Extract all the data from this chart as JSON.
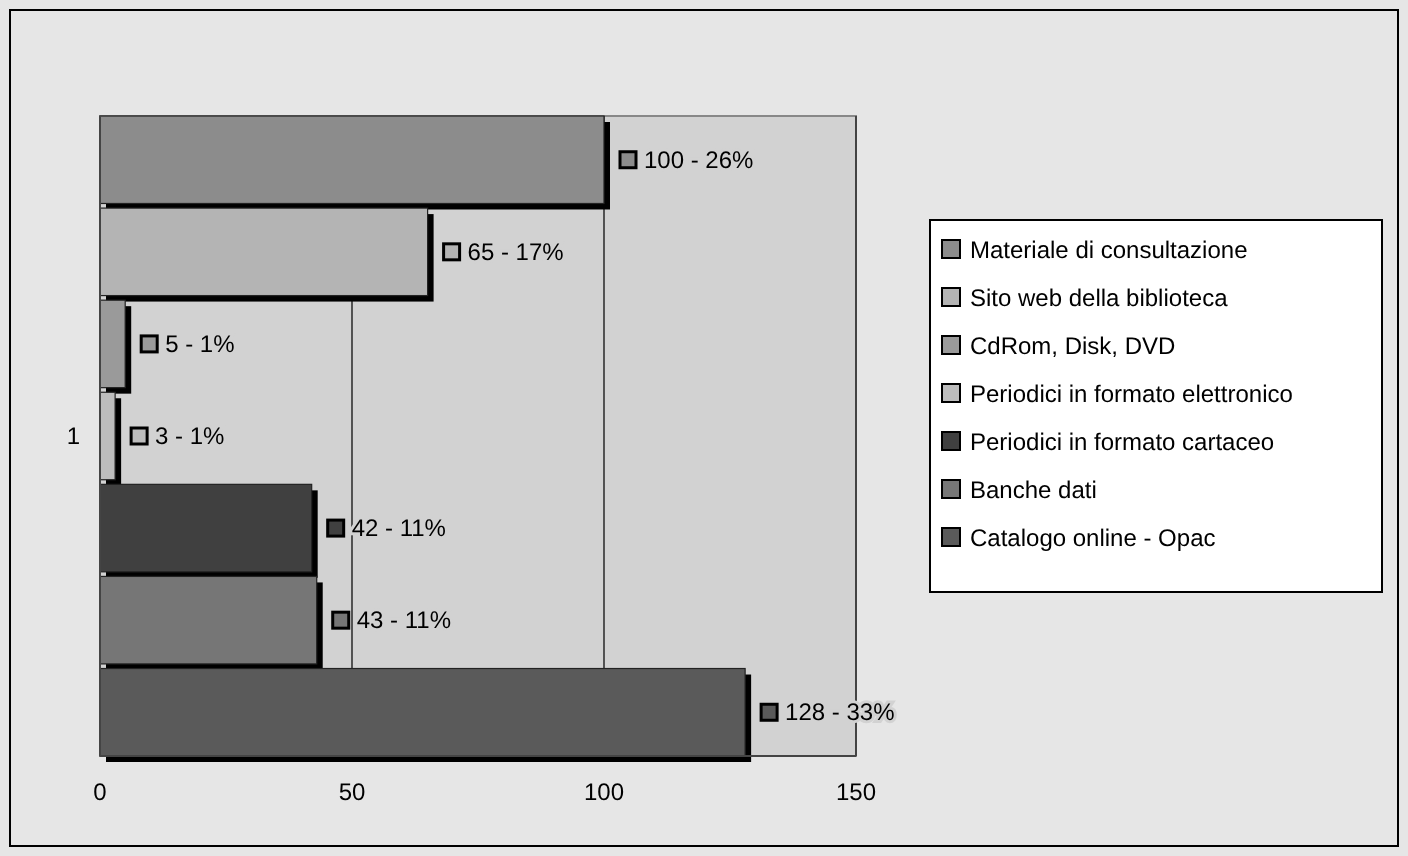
{
  "chart_data": {
    "type": "bar",
    "orientation": "horizontal",
    "categories": [
      "1"
    ],
    "xlim": [
      0,
      150
    ],
    "xticks": [
      0,
      50,
      100,
      150
    ],
    "grid": "x",
    "legend": "right",
    "series": [
      {
        "name": "Materiale di consultazione",
        "color": "#8c8c8c",
        "values": [
          100
        ],
        "value_labels": [
          "100 - 26%"
        ]
      },
      {
        "name": "Sito web della biblioteca",
        "color": "#b4b4b4",
        "values": [
          65
        ],
        "value_labels": [
          "65 - 17%"
        ]
      },
      {
        "name": "CdRom, Disk, DVD",
        "color": "#9a9a9a",
        "values": [
          5
        ],
        "value_labels": [
          "5 - 1%"
        ]
      },
      {
        "name": "Periodici in formato elettronico",
        "color": "#bdbdbd",
        "values": [
          3
        ],
        "value_labels": [
          "3 - 1%"
        ]
      },
      {
        "name": "Periodici in formato cartaceo",
        "color": "#404040",
        "values": [
          42
        ],
        "value_labels": [
          "42 - 11%"
        ]
      },
      {
        "name": "Banche dati",
        "color": "#767676",
        "values": [
          43
        ],
        "value_labels": [
          "43 - 11%"
        ]
      },
      {
        "name": "Catalogo online - Opac",
        "color": "#5a5a5a",
        "values": [
          128
        ],
        "value_labels": [
          "128 - 33%"
        ]
      }
    ]
  }
}
